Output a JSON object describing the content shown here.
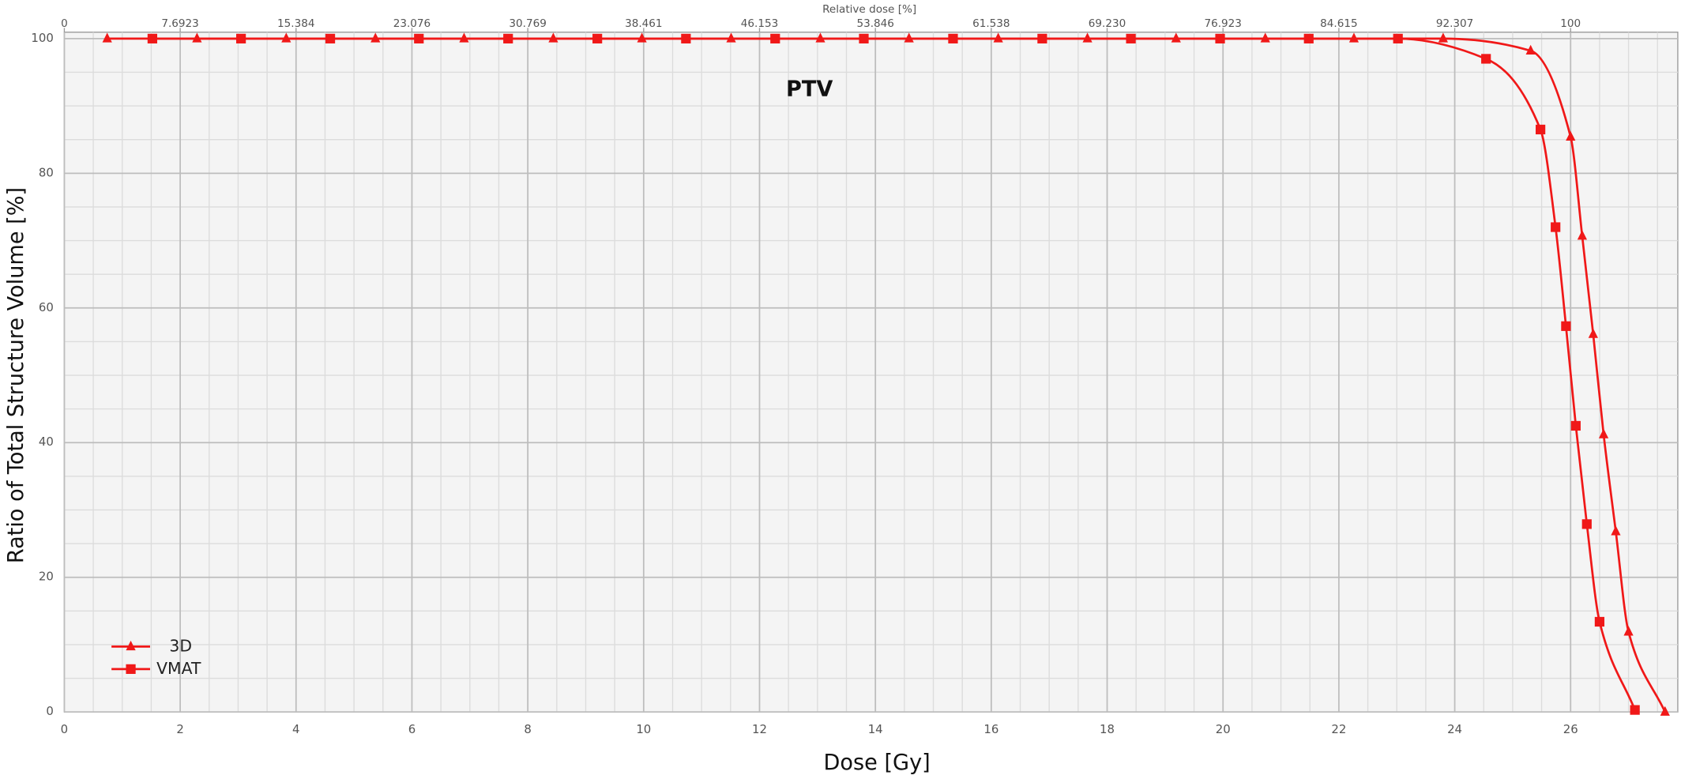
{
  "chart_data": {
    "type": "line",
    "title": "PTV",
    "xlabel": "Dose [Gy]",
    "ylabel": "Ratio of Total Structure Volume [%]",
    "x2label": "Relative dose [%]",
    "xlim": [
      0,
      27.85
    ],
    "ylim": [
      0,
      100
    ],
    "x2lim": [
      0,
      107.115
    ],
    "xticks": [
      0,
      2,
      4,
      6,
      8,
      10,
      12,
      14,
      16,
      18,
      20,
      22,
      24,
      26
    ],
    "yticks": [
      0,
      20,
      40,
      60,
      80,
      100
    ],
    "x2ticks": [
      0,
      7.6923,
      15.384,
      23.076,
      30.769,
      38.461,
      46.153,
      53.846,
      61.538,
      {
        "value": 69.23,
        "label": "69.230"
      },
      76.923,
      84.615,
      92.307,
      100
    ],
    "grid": true,
    "legend": "lower left",
    "series": [
      {
        "name": "3D",
        "color": "#f01818",
        "marker": "triangle",
        "x": [
          0.74,
          2.29,
          3.83,
          5.37,
          6.9,
          8.44,
          9.97,
          11.51,
          13.05,
          14.58,
          16.12,
          17.66,
          19.19,
          20.73,
          22.26,
          23.8,
          25.31,
          26.0,
          26.2,
          26.39,
          26.57,
          26.78,
          27.0,
          27.63
        ],
        "values": [
          100,
          100,
          100,
          100,
          100,
          100,
          100,
          100,
          100,
          100,
          100,
          100,
          100,
          100,
          100,
          100,
          98.2,
          85.4,
          70.7,
          56.1,
          41.2,
          26.8,
          11.9,
          0
        ]
      },
      {
        "name": "VMAT",
        "color": "#f01818",
        "marker": "square",
        "x": [
          1.52,
          3.05,
          4.59,
          6.12,
          7.66,
          9.2,
          10.73,
          12.27,
          13.8,
          15.34,
          16.88,
          18.41,
          19.95,
          21.48,
          23.02,
          24.54,
          25.48,
          25.74,
          25.92,
          26.09,
          26.28,
          26.5,
          27.11
        ],
        "values": [
          100,
          100,
          100,
          100,
          100,
          100,
          100,
          100,
          100,
          100,
          100,
          100,
          100,
          100,
          100,
          97.0,
          86.5,
          72.0,
          57.3,
          42.5,
          27.9,
          13.4,
          0.3
        ]
      }
    ]
  }
}
